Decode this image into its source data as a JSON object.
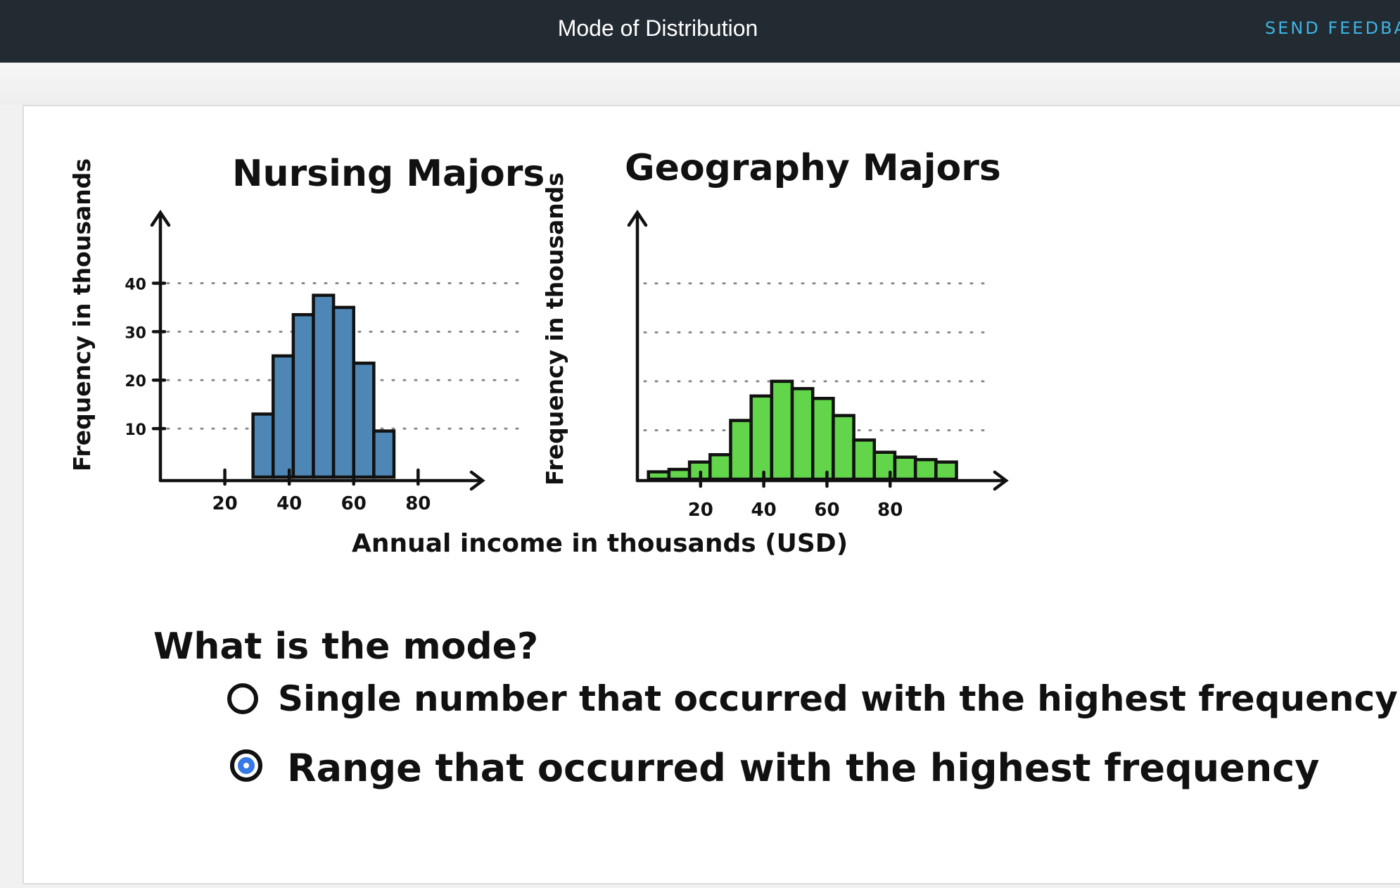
{
  "header": {
    "title": "Mode of Distribution",
    "feedback_label": "SEND FEEDBA"
  },
  "quiz": {
    "question": "What is the mode?",
    "options": [
      {
        "label": "Single number that occurred with the highest frequency",
        "selected": false
      },
      {
        "label": "Range that occurred with the highest frequency",
        "selected": true
      }
    ]
  },
  "chart_data": [
    {
      "type": "bar",
      "title": "Nursing Majors",
      "ylabel": "Frequency in thousands",
      "xlabel": "Annual income in thousands (USD)",
      "x_ticks": [
        "20",
        "40",
        "60",
        "80"
      ],
      "y_ticks": [
        "10",
        "20",
        "30",
        "40"
      ],
      "ylim": [
        0,
        45
      ],
      "xlim": [
        0,
        95
      ],
      "bin_width": 6.25,
      "bin_starts": [
        28.75,
        35,
        41.25,
        47.5,
        53.75,
        60,
        66.25,
        72.5
      ],
      "values": [
        13,
        25,
        33.5,
        37.5,
        35,
        23.5,
        9.5
      ],
      "color": "#4e87b5",
      "grid": true
    },
    {
      "type": "bar",
      "title": "Geography Majors",
      "ylabel": "Frequency in thousands",
      "xlabel": "Annual income in thousands (USD)",
      "x_ticks": [
        "20",
        "40",
        "60",
        "80"
      ],
      "y_ticks": [],
      "ylim": [
        0,
        45
      ],
      "xlim": [
        0,
        110
      ],
      "bin_width": 6.5,
      "bin_starts": [
        3.5,
        10,
        16.5,
        23,
        29.5,
        36,
        42.5,
        49,
        55.5,
        62,
        68.5,
        75,
        81.5,
        88,
        94.5,
        101
      ],
      "values": [
        1.5,
        2,
        3.5,
        5,
        12,
        17,
        20,
        18.5,
        16.5,
        13,
        8,
        5.5,
        4.5,
        4,
        3.5
      ],
      "color": "#62d54a",
      "grid": true
    }
  ]
}
